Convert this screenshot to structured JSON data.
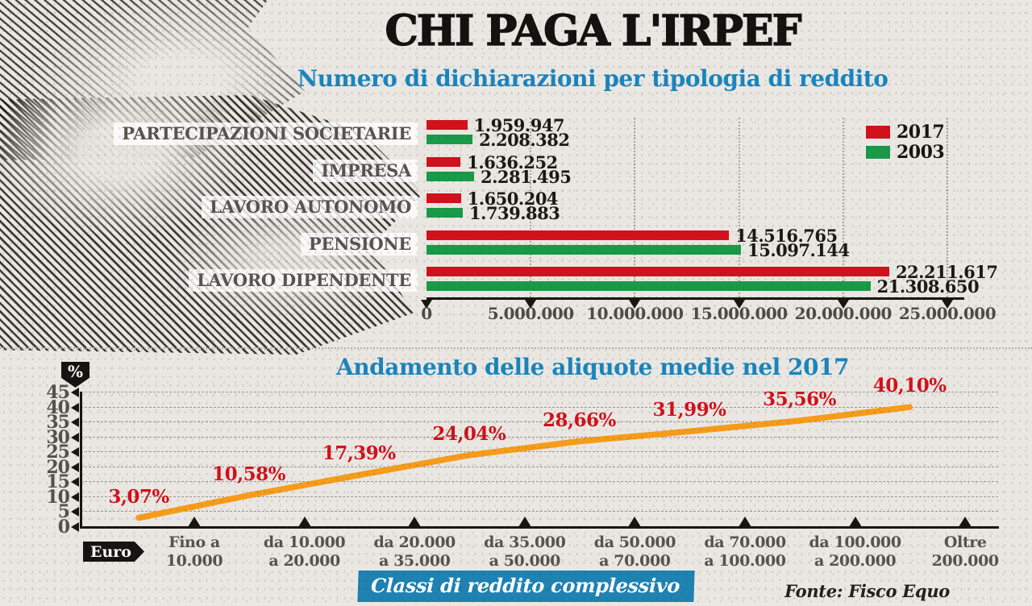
{
  "title": "CHI PAGA L'IRPEF",
  "colors": {
    "accent_blue": "#1a85bd",
    "banner_blue": "#1e82b2",
    "red_2017": "#d2111c",
    "green_2003": "#199a48",
    "orange_line": "#f59c1b"
  },
  "legend": {
    "items": [
      {
        "label": "2017",
        "color": "#d2111c"
      },
      {
        "label": "2003",
        "color": "#199a48"
      }
    ]
  },
  "footer": {
    "source": "Fonte: Fisco Equo"
  },
  "chart_data": [
    {
      "type": "bar",
      "orientation": "horizontal",
      "title": "Numero di dichiarazioni per tipologia di reddito",
      "categories": [
        "PARTECIPAZIONI SOCIETARIE",
        "IMPRESA",
        "LAVORO AUTONOMO",
        "PENSIONE",
        "LAVORO DIPENDENTE"
      ],
      "series": [
        {
          "name": "2017",
          "color": "#d2111c",
          "values": [
            1959947,
            1636252,
            1650204,
            14516765,
            22211617
          ],
          "value_labels": [
            "1.959.947",
            "1.636.252",
            "1.650.204",
            "14.516.765",
            "22.211.617"
          ]
        },
        {
          "name": "2003",
          "color": "#199a48",
          "values": [
            2208382,
            2281495,
            1739883,
            15097144,
            21308650
          ],
          "value_labels": [
            "2.208.382",
            "2.281.495",
            "1.739.883",
            "15.097.144",
            "21.308.650"
          ]
        }
      ],
      "xlim": [
        0,
        25000000
      ],
      "x_ticks": [
        "0",
        "5.000.000",
        "10.000.000",
        "15.000.000",
        "20.000.000",
        "25.000.000"
      ],
      "x_tick_values": [
        0,
        5000000,
        10000000,
        15000000,
        20000000,
        25000000
      ],
      "grid": "vertical-dotted",
      "legend_position": "top-right"
    },
    {
      "type": "line",
      "title": "Andamento delle aliquote medie nel 2017",
      "y_axis_badge": "%",
      "x_axis_badge": "Euro",
      "x_axis_caption": "Classi di reddito complessivo",
      "categories": [
        [
          "Fino a",
          "10.000"
        ],
        [
          "da 10.000",
          "a 20.000"
        ],
        [
          "da 20.000",
          "a 35.000"
        ],
        [
          "da 35.000",
          "a 50.000"
        ],
        [
          "da 50.000",
          "a 70.000"
        ],
        [
          "da 70.000",
          "a 100.000"
        ],
        [
          "da 100.000",
          "a 200.000"
        ],
        [
          "Oltre",
          "200.000"
        ]
      ],
      "values": [
        3.07,
        10.58,
        17.39,
        24.04,
        28.66,
        31.99,
        35.56,
        40.1
      ],
      "point_labels": [
        "3,07%",
        "10,58%",
        "17,39%",
        "24,04%",
        "28,66%",
        "31,99%",
        "35,56%",
        "40,10%"
      ],
      "ylim": [
        0,
        45
      ],
      "y_ticks": [
        45,
        40,
        35,
        30,
        25,
        20,
        15,
        10,
        5,
        0
      ],
      "grid": "horizontal-dashed",
      "line_color": "#f59c1b"
    }
  ]
}
